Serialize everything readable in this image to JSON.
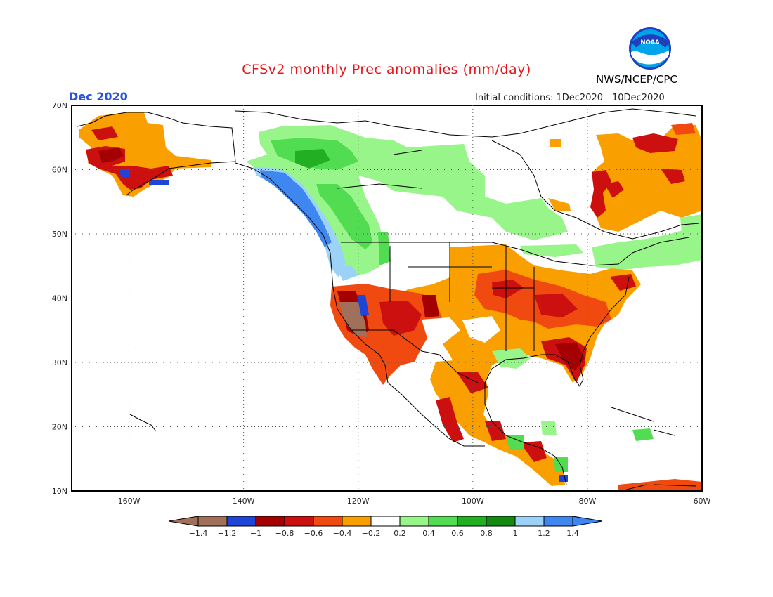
{
  "title": "CFSv2 monthly Prec anomalies (mm/day)",
  "month_label": "Dec 2020",
  "init_label": "Initial conditions: 1Dec2020—10Dec2020",
  "agency": "NWS/NCEP/CPC",
  "logo_text": "NOAA",
  "map": {
    "lon_range": [
      -170,
      -60
    ],
    "lat_range": [
      10,
      70
    ],
    "lat_ticks": [
      "10N",
      "20N",
      "30N",
      "40N",
      "50N",
      "60N",
      "70N"
    ],
    "lon_ticks": [
      "160W",
      "140W",
      "120W",
      "100W",
      "80W",
      "60W"
    ]
  },
  "legend": {
    "labels": [
      "-1.4",
      "-1.2",
      "-1",
      "-0.8",
      "-0.6",
      "-0.4",
      "-0.2",
      "0.2",
      "0.4",
      "0.6",
      "0.8",
      "1",
      "1.2",
      "1.4"
    ],
    "colors": [
      "#a0705a",
      "#1f45d8",
      "#a50000",
      "#cc1010",
      "#f04a10",
      "#f9a000",
      "#ffffff",
      "#98f58a",
      "#52dc52",
      "#22b022",
      "#128a12",
      "#9cd2f8",
      "#3e86f0",
      "#3e86f0"
    ]
  },
  "colors": {
    "title": "#e8151b",
    "month": "#2b52e0",
    "ocean": "#ffffff",
    "border": "#000000"
  }
}
